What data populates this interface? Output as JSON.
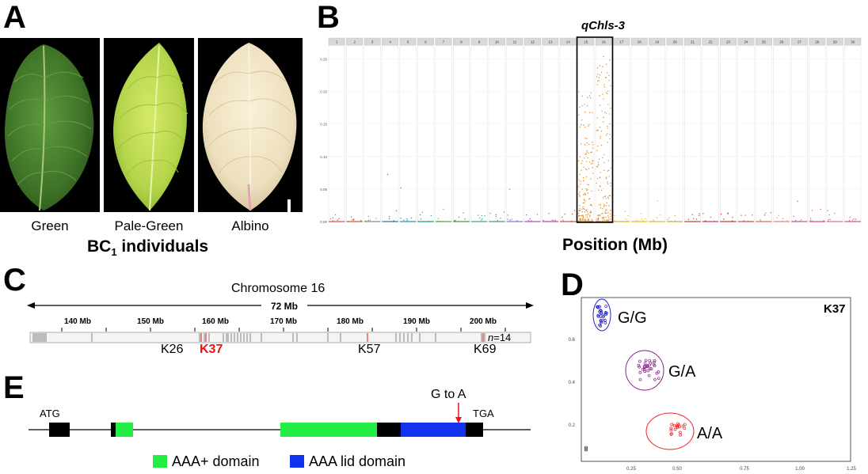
{
  "panel_a": {
    "letter": "A",
    "leaves": [
      {
        "caption": "Green"
      },
      {
        "caption": "Pale-Green"
      },
      {
        "caption": "Albino"
      }
    ],
    "group_label": "BC",
    "group_label_sub": "1",
    "group_label_suffix": " individuals"
  },
  "panel_b": {
    "letter": "B",
    "chart_data": {
      "type": "scatter",
      "title": "qChls-3",
      "xlabel": "Position (Mb)",
      "ylabel": "",
      "ylim": [
        0,
        0.27
      ],
      "yticks": [
        "0.00",
        "0.05",
        "0.10",
        "0.15",
        "0.20",
        "0.25"
      ],
      "facets": [
        "1",
        "2",
        "3",
        "4",
        "5",
        "6",
        "7",
        "8",
        "9",
        "10",
        "11",
        "12",
        "13",
        "14",
        "15",
        "16",
        "17",
        "18",
        "19",
        "20",
        "21",
        "22",
        "23",
        "24",
        "25",
        "26",
        "27",
        "28",
        "29",
        "30"
      ],
      "highlight_facets": [
        "15",
        "16"
      ],
      "colors": [
        "#e05050",
        "#c55a3a",
        "#8a8a8a",
        "#2f6fc0",
        "#2a8fb0",
        "#1a9a8a",
        "#5aaa4a",
        "#3a9a3a",
        "#3aaa7a",
        "#4a9a6a",
        "#7a7acc",
        "#9a5abe",
        "#c04aa0",
        "#d04a4a",
        "#e08a20",
        "#e08a20",
        "#e0b020",
        "#e0c020",
        "#d0c030",
        "#c0b040",
        "#c04040",
        "#d04060",
        "#c03a3a",
        "#d05050",
        "#e06a6a",
        "#e08a8a",
        "#c05a9a",
        "#e04a8a",
        "#e06aa0",
        "#d05a70"
      ]
    }
  },
  "panel_c": {
    "letter": "C",
    "title": "Chromosome 16",
    "span_label": "72 Mb",
    "ticks": [
      "140 Mb",
      "150 Mb",
      "160 Mb",
      "170 Mb",
      "180 Mb",
      "190 Mb",
      "200 Mb"
    ],
    "markers": [
      "K26",
      "K37",
      "K57",
      "K69"
    ],
    "highlight_marker": "K37",
    "n_prefix": "n",
    "n_value": "=14"
  },
  "panel_d": {
    "letter": "D",
    "marker": "K37",
    "clusters": [
      "G/G",
      "G/A",
      "A/A"
    ],
    "y_ticks": [
      "0.6",
      "0.4",
      "0.2"
    ],
    "x_ticks": [
      "0.25",
      "0.50",
      "0.75",
      "1.00",
      "1.25"
    ],
    "colors": {
      "gg": "#2222cc",
      "ga": "#882288",
      "aa": "#ee2222"
    }
  },
  "panel_e": {
    "letter": "E",
    "start_codon": "ATG",
    "stop_codon": "TGA",
    "mutation": "G to A",
    "legend": [
      {
        "label": "AAA+ domain",
        "color": "#22ee44"
      },
      {
        "label": "AAA lid domain",
        "color": "#1133ee"
      }
    ]
  }
}
